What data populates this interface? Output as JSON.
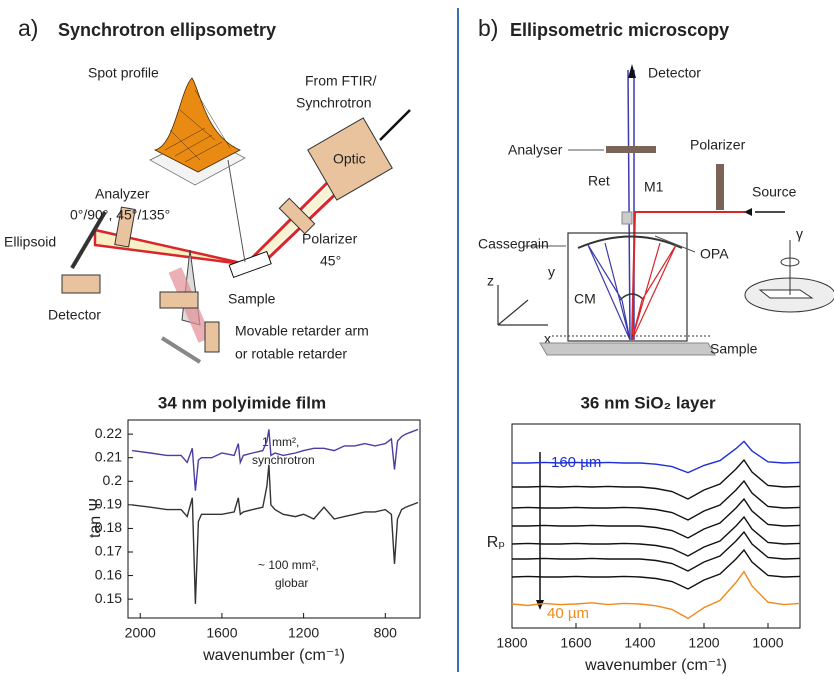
{
  "panels": [
    {
      "label": "a)",
      "title": "Synchrotron ellipsometry",
      "labels": [
        "Spot profile",
        "From FTIR/",
        "Synchrotron",
        "Optic",
        "Analyzer",
        "0°/90°, 45°/135°",
        "Ellipsoid",
        "Polarizer",
        "45°",
        "Sample",
        "Detector",
        "Movable retarder arm",
        "or rotable retarder"
      ]
    },
    {
      "label": "b)",
      "title": "Ellipsometric microscopy",
      "labels": [
        "Detector",
        "Analyser",
        "Polarizer",
        "Ret",
        "M1",
        "Source",
        "Cassegrain",
        "OPA",
        "γ",
        "z",
        "y",
        "x",
        "CM",
        "Sample"
      ]
    }
  ],
  "chart_data": [
    {
      "type": "line",
      "title": "34 nm polyimide film",
      "x_label": "wavenumber (cm⁻¹)",
      "y_label": "tan Ψ",
      "x": [
        2040,
        1950,
        1870,
        1800,
        1770,
        1745,
        1730,
        1715,
        1700,
        1650,
        1600,
        1540,
        1520,
        1510,
        1495,
        1450,
        1400,
        1380,
        1370,
        1360,
        1340,
        1300,
        1240,
        1200,
        1150,
        1100,
        1050,
        1000,
        950,
        900,
        850,
        800,
        770,
        755,
        740,
        720,
        700,
        670,
        640
      ],
      "series": [
        {
          "color": "#4a3fa0",
          "values": [
            0.213,
            0.212,
            0.211,
            0.211,
            0.208,
            0.214,
            0.196,
            0.209,
            0.21,
            0.21,
            0.212,
            0.211,
            0.216,
            0.208,
            0.211,
            0.212,
            0.213,
            0.217,
            0.222,
            0.211,
            0.212,
            0.211,
            0.212,
            0.213,
            0.214,
            0.214,
            0.213,
            0.215,
            0.215,
            0.216,
            0.215,
            0.216,
            0.218,
            0.205,
            0.217,
            0.219,
            0.22,
            0.221,
            0.222
          ]
        },
        {
          "color": "#333333",
          "values": [
            0.19,
            0.189,
            0.188,
            0.188,
            0.185,
            0.193,
            0.148,
            0.183,
            0.186,
            0.186,
            0.186,
            0.187,
            0.193,
            0.186,
            0.187,
            0.188,
            0.189,
            0.198,
            0.207,
            0.19,
            0.188,
            0.186,
            0.185,
            0.186,
            0.184,
            0.189,
            0.184,
            0.185,
            0.186,
            0.187,
            0.187,
            0.188,
            0.186,
            0.165,
            0.184,
            0.188,
            0.189,
            0.19,
            0.191
          ]
        }
      ],
      "xlim": [
        2060,
        630
      ],
      "xticks": [
        2000,
        1600,
        1200,
        800
      ],
      "ylim": [
        0.142,
        0.226
      ],
      "yticks": [
        0.15,
        0.16,
        0.17,
        0.18,
        0.19,
        0.2,
        0.21,
        0.22
      ],
      "annotations": [
        "1 mm²,",
        "synchrotron",
        "~ 100 mm²,",
        "globar"
      ]
    },
    {
      "type": "line",
      "title": "36 nm SiO₂ layer",
      "x_label": "wavenumber (cm⁻¹)",
      "y_label": "Rₚ",
      "x": [
        1800,
        1750,
        1700,
        1650,
        1600,
        1550,
        1500,
        1450,
        1400,
        1350,
        1300,
        1250,
        1200,
        1150,
        1100,
        1075,
        1050,
        1000,
        950,
        900
      ],
      "series": [
        {
          "color": "#1f2fd8",
          "values": [
            7.0,
            7.0,
            7.02,
            7.0,
            7.02,
            7.0,
            7.02,
            7.0,
            7.0,
            6.96,
            6.88,
            6.68,
            6.92,
            7.08,
            7.48,
            7.72,
            7.4,
            7.04,
            7.0,
            7.02
          ]
        },
        {
          "color": "#111111",
          "values": [
            6.2,
            6.2,
            6.22,
            6.2,
            6.22,
            6.2,
            6.22,
            6.2,
            6.2,
            6.15,
            6.05,
            5.8,
            6.1,
            6.3,
            6.8,
            7.1,
            6.7,
            6.25,
            6.2,
            6.22
          ]
        },
        {
          "color": "#111111",
          "values": [
            5.5,
            5.52,
            5.5,
            5.5,
            5.52,
            5.5,
            5.5,
            5.52,
            5.5,
            5.45,
            5.35,
            5.1,
            5.4,
            5.6,
            6.1,
            6.4,
            6.0,
            5.55,
            5.5,
            5.52
          ]
        },
        {
          "color": "#111111",
          "values": [
            4.9,
            4.9,
            4.92,
            4.9,
            4.9,
            4.92,
            4.9,
            4.9,
            4.9,
            4.85,
            4.75,
            4.5,
            4.8,
            5.0,
            5.5,
            5.8,
            5.4,
            4.95,
            4.9,
            4.92
          ]
        },
        {
          "color": "#111111",
          "values": [
            4.3,
            4.32,
            4.3,
            4.3,
            4.32,
            4.3,
            4.3,
            4.32,
            4.3,
            4.25,
            4.15,
            3.9,
            4.2,
            4.4,
            4.9,
            5.2,
            4.8,
            4.35,
            4.3,
            4.32
          ]
        },
        {
          "color": "#111111",
          "values": [
            3.8,
            3.8,
            3.82,
            3.8,
            3.8,
            3.82,
            3.8,
            3.8,
            3.8,
            3.75,
            3.65,
            3.4,
            3.7,
            3.9,
            4.4,
            4.7,
            4.3,
            3.85,
            3.8,
            3.82
          ]
        },
        {
          "color": "#111111",
          "values": [
            3.2,
            3.22,
            3.2,
            3.2,
            3.22,
            3.2,
            3.2,
            3.22,
            3.2,
            3.15,
            3.05,
            2.8,
            3.1,
            3.3,
            3.8,
            4.1,
            3.7,
            3.25,
            3.2,
            3.22
          ]
        },
        {
          "color": "#f08a1c",
          "values": [
            2.3,
            2.25,
            2.32,
            2.28,
            2.3,
            2.34,
            2.28,
            2.32,
            2.3,
            2.24,
            2.12,
            1.82,
            2.18,
            2.42,
            3.02,
            3.38,
            2.9,
            2.36,
            2.28,
            2.32
          ]
        }
      ],
      "xlim": [
        1800,
        900
      ],
      "xticks": [
        1800,
        1600,
        1400,
        1200,
        1000
      ],
      "ylim": [
        1.5,
        8.3
      ],
      "annotations": [
        "160 µm",
        "40 µm"
      ]
    }
  ]
}
